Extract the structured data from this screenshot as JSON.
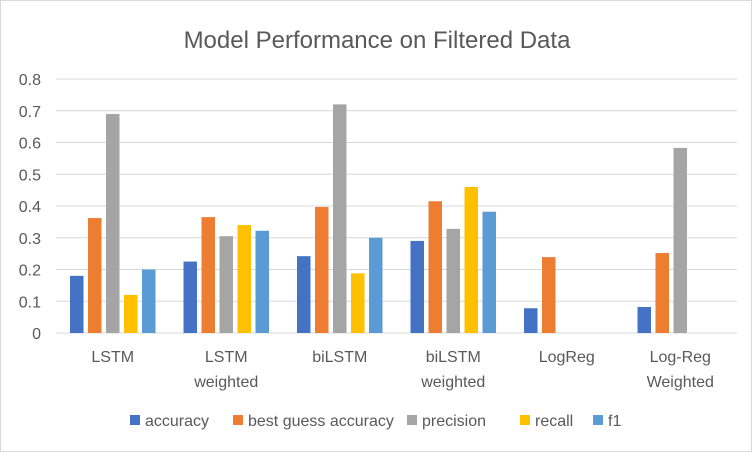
{
  "chart_data": {
    "type": "bar",
    "title": "Model Performance  on Filtered Data",
    "xlabel": "",
    "ylabel": "",
    "ylim": [
      0,
      0.8
    ],
    "yticks": [
      "0",
      "0.1",
      "0.2",
      "0.3",
      "0.4",
      "0.5",
      "0.6",
      "0.7",
      "0.8"
    ],
    "grid": true,
    "legend_position": "bottom",
    "categories": [
      [
        "LSTM"
      ],
      [
        "LSTM",
        "weighted"
      ],
      [
        "biLSTM"
      ],
      [
        "biLSTM",
        "weighted"
      ],
      [
        "LogReg"
      ],
      [
        "Log-Reg",
        "Weighted"
      ]
    ],
    "series": [
      {
        "name": "accuracy",
        "color": "#4472c4",
        "values": [
          0.18,
          0.225,
          0.242,
          0.29,
          0.078,
          0.082
        ]
      },
      {
        "name": "best guess accuracy",
        "color": "#ed7d31",
        "values": [
          0.362,
          0.365,
          0.397,
          0.415,
          0.239,
          0.252
        ]
      },
      {
        "name": "precision",
        "color": "#a5a5a5",
        "values": [
          0.69,
          0.305,
          0.72,
          0.328,
          0,
          0.583
        ]
      },
      {
        "name": "recall",
        "color": "#ffc000",
        "values": [
          0.12,
          0.34,
          0.188,
          0.46,
          0,
          0
        ]
      },
      {
        "name": "f1",
        "color": "#5b9bd5",
        "values": [
          0.2,
          0.322,
          0.3,
          0.382,
          0,
          0
        ]
      }
    ]
  }
}
